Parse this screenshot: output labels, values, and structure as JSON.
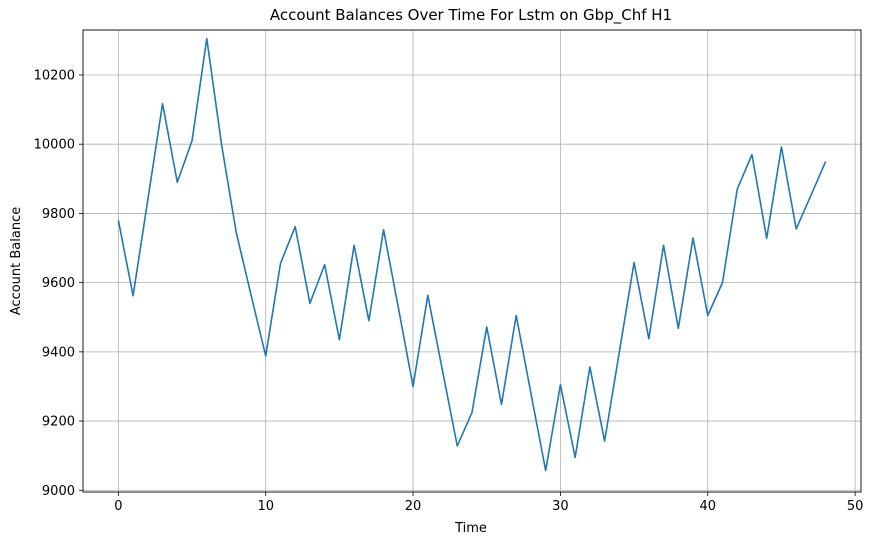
{
  "chart_data": {
    "type": "line",
    "title": "Account Balances Over Time For Lstm on Gbp_Chf H1",
    "xlabel": "Time",
    "ylabel": "Account Balance",
    "xlim": [
      -2.4,
      50.4
    ],
    "ylim": [
      8995,
      10330
    ],
    "xticks": [
      0,
      10,
      20,
      30,
      40,
      50
    ],
    "yticks": [
      9000,
      9200,
      9400,
      9600,
      9800,
      10000,
      10200
    ],
    "grid": true,
    "line_color": "#1f77b4",
    "series": [
      {
        "x": [
          0,
          1,
          2,
          3,
          4,
          5,
          6,
          7,
          8,
          9,
          10,
          11,
          12,
          13,
          14,
          15,
          16,
          17,
          18,
          19,
          20,
          21,
          22,
          23,
          24,
          25,
          26,
          27,
          28,
          29,
          30,
          31,
          32,
          33,
          34,
          35,
          36,
          37,
          38,
          39,
          40,
          41,
          42,
          43,
          44,
          45,
          46,
          47,
          48
        ],
        "values": [
          9780,
          9562,
          9840,
          10117,
          9890,
          10010,
          10305,
          10000,
          9745,
          9565,
          9388,
          9655,
          9762,
          9540,
          9652,
          9435,
          9708,
          9490,
          9753,
          9528,
          9300,
          9563,
          9345,
          9128,
          9225,
          9472,
          9248,
          9505,
          9280,
          9057,
          9305,
          9095,
          9356,
          9142,
          9400,
          9658,
          9438,
          9708,
          9468,
          9729,
          9505,
          9600,
          9870,
          9970,
          9728,
          9992,
          9755,
          9852,
          9950
        ]
      }
    ]
  }
}
